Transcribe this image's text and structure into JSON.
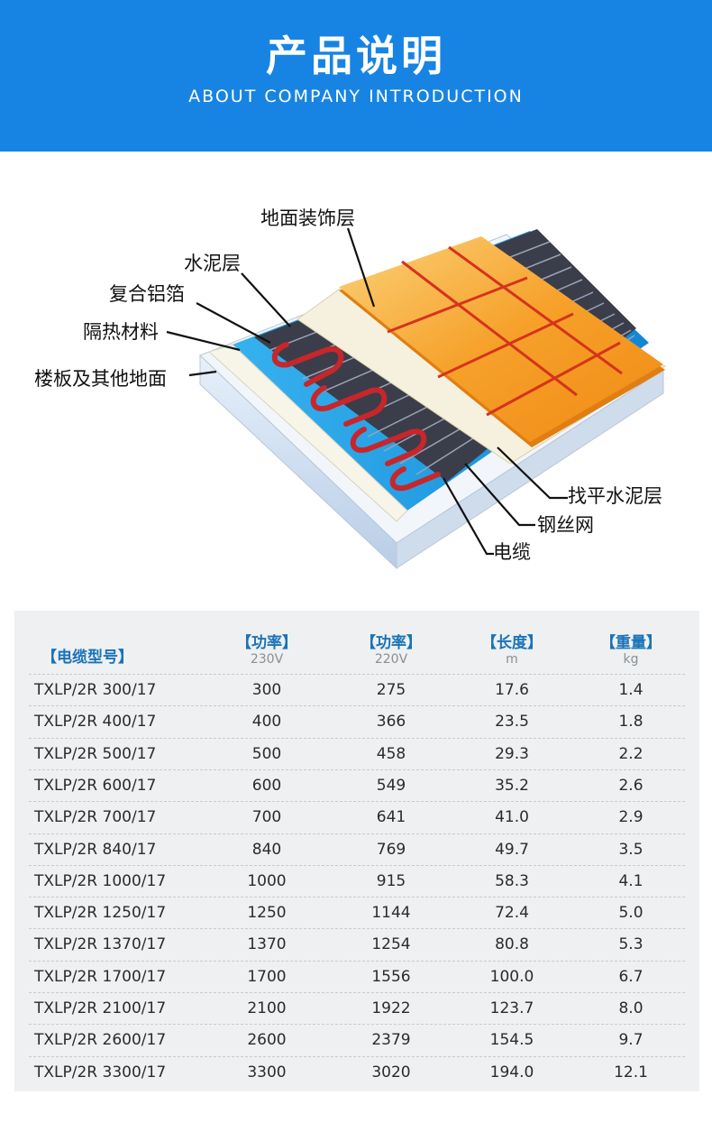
{
  "header": {
    "title": "产品说明",
    "subtitle": "ABOUT COMPANY INTRODUCTION"
  },
  "diagram": {
    "labels": {
      "floor_finish": "地面装饰层",
      "cement_layer": "水泥层",
      "aluminum_foil": "复合铝箔",
      "insulation": "隔热材料",
      "floor_slab": "楼板及其他地面",
      "leveling_cement": "找平水泥层",
      "steel_mesh": "钢丝网",
      "cable": "电缆"
    },
    "colors": {
      "tile": "#f7a52b",
      "grout": "#d6331c",
      "insulation": "#1d9be0",
      "slab": "#cfe0f3",
      "cable": "#c8262a"
    }
  },
  "table": {
    "headers": [
      {
        "label": "【电缆型号】",
        "unit": ""
      },
      {
        "label": "【功率】",
        "unit": "230V"
      },
      {
        "label": "【功率】",
        "unit": "220V"
      },
      {
        "label": "【长度】",
        "unit": "m"
      },
      {
        "label": "【重量】",
        "unit": "kg"
      }
    ],
    "rows": [
      [
        "TXLP/2R 300/17",
        "300",
        "275",
        "17.6",
        "1.4"
      ],
      [
        "TXLP/2R 400/17",
        "400",
        "366",
        "23.5",
        "1.8"
      ],
      [
        "TXLP/2R 500/17",
        "500",
        "458",
        "29.3",
        "2.2"
      ],
      [
        "TXLP/2R 600/17",
        "600",
        "549",
        "35.2",
        "2.6"
      ],
      [
        "TXLP/2R 700/17",
        "700",
        "641",
        "41.0",
        "2.9"
      ],
      [
        "TXLP/2R 840/17",
        "840",
        "769",
        "49.7",
        "3.5"
      ],
      [
        "TXLP/2R 1000/17",
        "1000",
        "915",
        "58.3",
        "4.1"
      ],
      [
        "TXLP/2R 1250/17",
        "1250",
        "1144",
        "72.4",
        "5.0"
      ],
      [
        "TXLP/2R 1370/17",
        "1370",
        "1254",
        "80.8",
        "5.3"
      ],
      [
        "TXLP/2R 1700/17",
        "1700",
        "1556",
        "100.0",
        "6.7"
      ],
      [
        "TXLP/2R 2100/17",
        "2100",
        "1922",
        "123.7",
        "8.0"
      ],
      [
        "TXLP/2R 2600/17",
        "2600",
        "2379",
        "154.5",
        "9.7"
      ],
      [
        "TXLP/2R 3300/17",
        "3300",
        "3020",
        "194.0",
        "12.1"
      ]
    ]
  }
}
